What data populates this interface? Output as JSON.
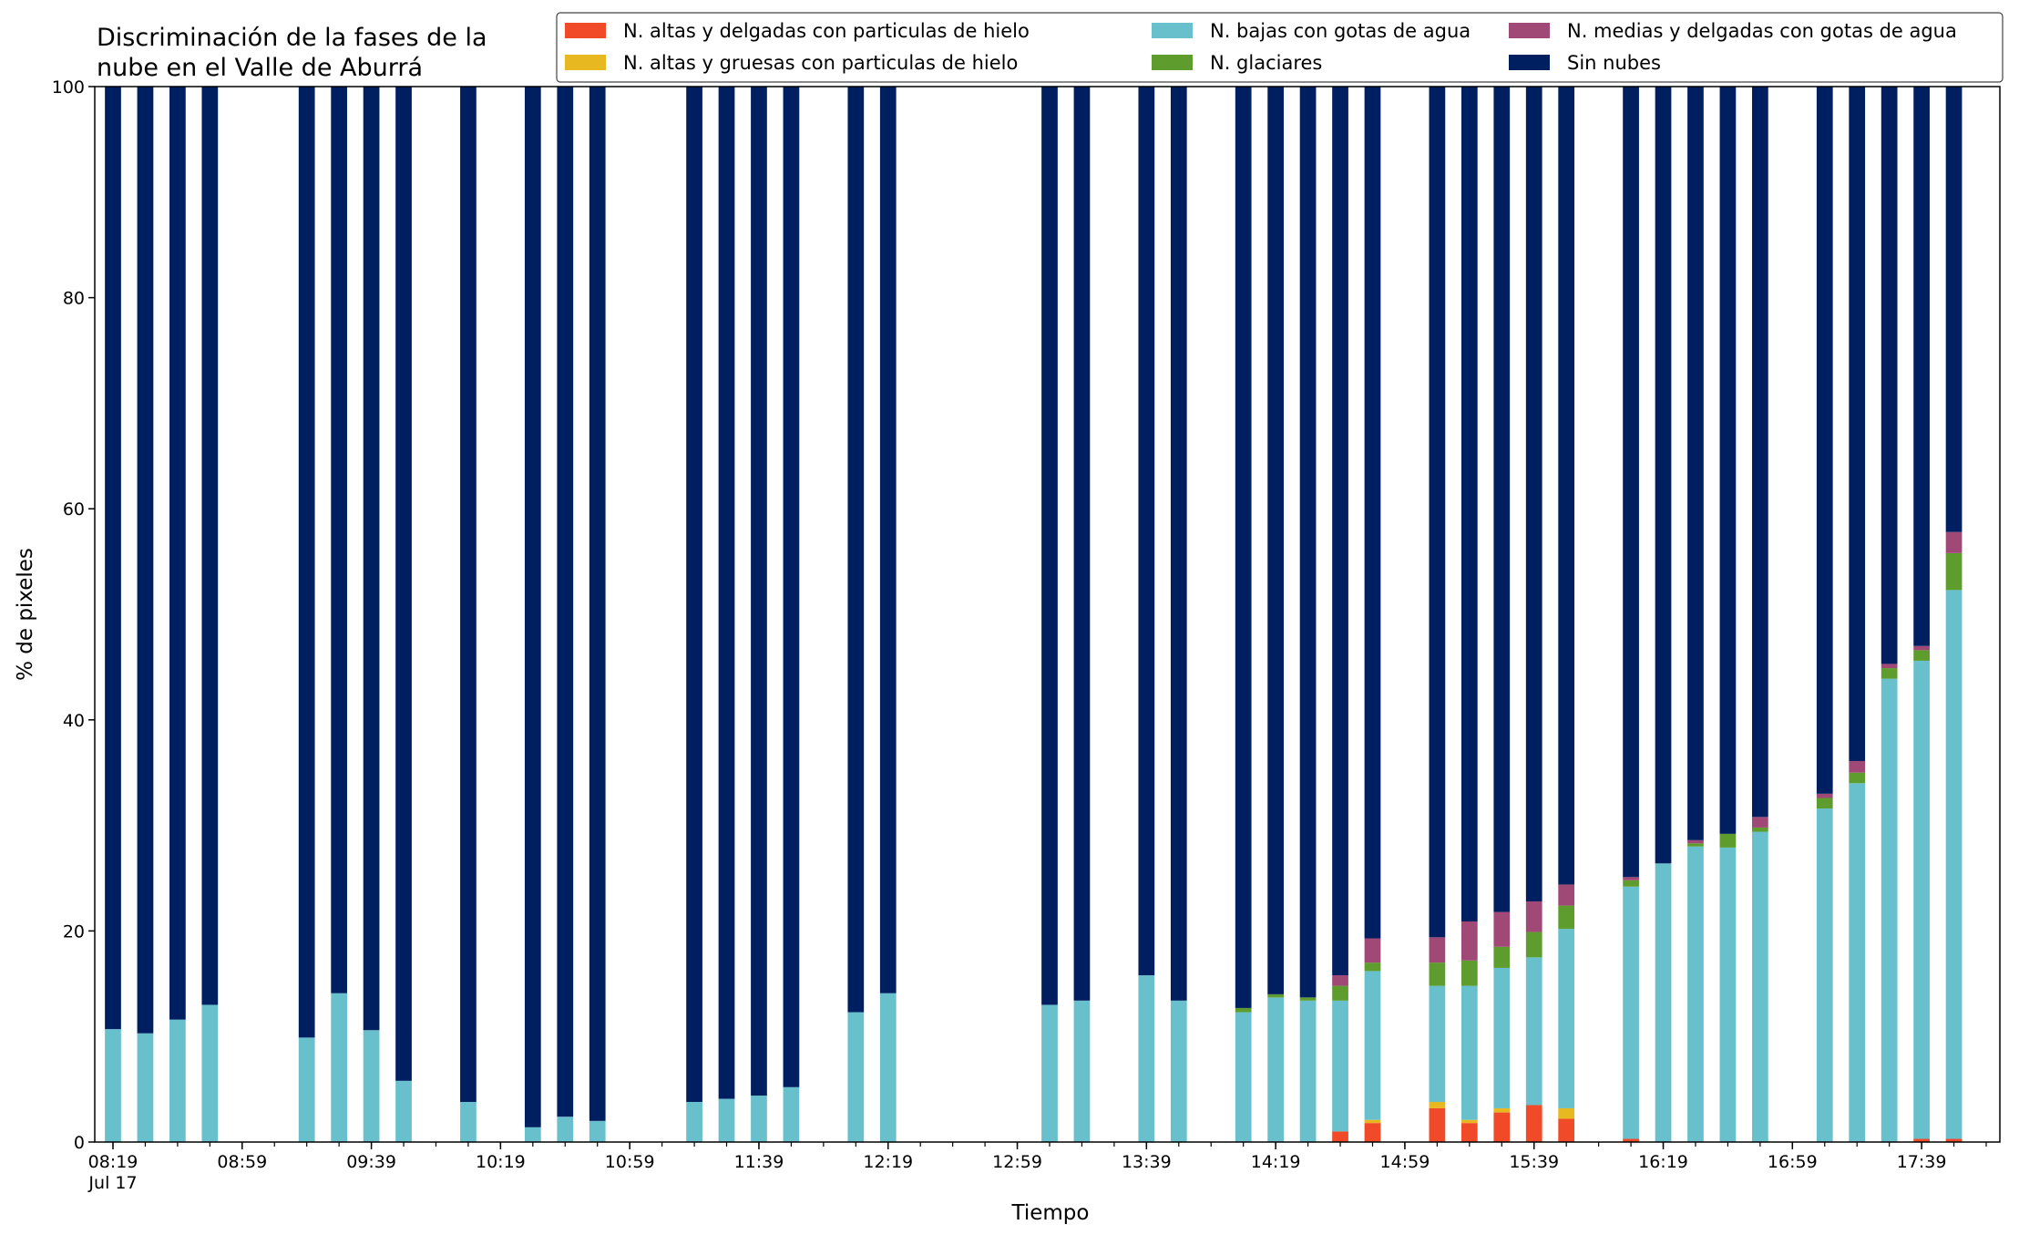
{
  "chart_data": {
    "type": "bar",
    "stacked": true,
    "title_lines": [
      "Discriminación de la fases de la",
      "nube en el Valle de Aburrá"
    ],
    "xlabel": "Tiempo",
    "ylabel": "% de pixeles",
    "ylim": [
      0,
      100
    ],
    "yticks": [
      0,
      20,
      40,
      60,
      80,
      100
    ],
    "xlim": [
      "08:19",
      "17:59"
    ],
    "x_interval_minutes": 10,
    "xtick_labels": [
      {
        "time": "08:19",
        "label": "08:19",
        "sublabel": "Jul 17"
      },
      {
        "time": "08:59",
        "label": "08:59"
      },
      {
        "time": "09:39",
        "label": "09:39"
      },
      {
        "time": "10:19",
        "label": "10:19"
      },
      {
        "time": "10:59",
        "label": "10:59"
      },
      {
        "time": "11:39",
        "label": "11:39"
      },
      {
        "time": "12:19",
        "label": "12:19"
      },
      {
        "time": "12:59",
        "label": "12:59"
      },
      {
        "time": "13:39",
        "label": "13:39"
      },
      {
        "time": "14:19",
        "label": "14:19"
      },
      {
        "time": "14:59",
        "label": "14:59"
      },
      {
        "time": "15:39",
        "label": "15:39"
      },
      {
        "time": "16:19",
        "label": "16:19"
      },
      {
        "time": "16:59",
        "label": "16:59"
      },
      {
        "time": "17:39",
        "label": "17:39"
      }
    ],
    "grid": false,
    "legend_position": "top-right",
    "x": [
      "08:19",
      "08:29",
      "08:39",
      "08:49",
      "09:19",
      "09:29",
      "09:39",
      "09:49",
      "10:09",
      "10:29",
      "10:39",
      "10:49",
      "11:19",
      "11:29",
      "11:39",
      "11:49",
      "12:09",
      "12:19",
      "13:09",
      "13:19",
      "13:39",
      "13:49",
      "14:09",
      "14:19",
      "14:29",
      "14:39",
      "14:49",
      "15:09",
      "15:19",
      "15:29",
      "15:39",
      "15:49",
      "16:09",
      "16:19",
      "16:29",
      "16:39",
      "16:49",
      "17:09",
      "17:19",
      "17:29",
      "17:39",
      "17:49"
    ],
    "series": [
      {
        "name": "N. altas y delgadas con particulas de hielo",
        "color": "#f04a28",
        "values": [
          0,
          0,
          0,
          0,
          0,
          0,
          0,
          0,
          0,
          0,
          0,
          0,
          0,
          0,
          0,
          0,
          0,
          0,
          0,
          0,
          0,
          0,
          0,
          0,
          0,
          1.0,
          1.8,
          3.2,
          1.8,
          2.8,
          3.5,
          2.2,
          0.3,
          0,
          0,
          0,
          0,
          0,
          0,
          0,
          0.3,
          0.3
        ]
      },
      {
        "name": "N. altas y gruesas con particulas de hielo",
        "color": "#e8b820",
        "values": [
          0,
          0,
          0,
          0,
          0,
          0,
          0,
          0,
          0,
          0,
          0,
          0,
          0,
          0,
          0,
          0,
          0,
          0,
          0,
          0,
          0,
          0,
          0,
          0,
          0,
          0,
          0.3,
          0.6,
          0.3,
          0.4,
          0,
          1.0,
          0,
          0,
          0,
          0,
          0,
          0,
          0,
          0,
          0,
          0
        ]
      },
      {
        "name": "N. bajas con gotas de agua",
        "color": "#67c0cb",
        "values": [
          10.7,
          10.3,
          11.6,
          13.0,
          9.9,
          14.1,
          10.6,
          5.8,
          3.8,
          1.4,
          2.4,
          2.0,
          3.8,
          4.1,
          4.4,
          5.2,
          12.3,
          14.1,
          13.0,
          13.4,
          15.8,
          13.4,
          12.3,
          13.7,
          13.4,
          12.4,
          14.1,
          11.0,
          12.7,
          13.3,
          14.0,
          17.0,
          23.9,
          26.4,
          28.0,
          27.9,
          29.4,
          31.6,
          34.0,
          43.9,
          45.3,
          52.0
        ]
      },
      {
        "name": "N. glaciares",
        "color": "#5f9c2e",
        "values": [
          0,
          0,
          0,
          0,
          0,
          0,
          0,
          0,
          0,
          0,
          0,
          0,
          0,
          0,
          0,
          0,
          0,
          0,
          0,
          0,
          0,
          0,
          0.4,
          0.3,
          0.3,
          1.4,
          0.8,
          2.2,
          2.4,
          2.0,
          2.4,
          2.2,
          0.6,
          0,
          0.3,
          1.3,
          0.4,
          1.0,
          1.0,
          1.0,
          1.0,
          3.5
        ]
      },
      {
        "name": "N. medias y delgadas con gotas de agua",
        "color": "#a04876",
        "values": [
          0,
          0,
          0,
          0,
          0,
          0,
          0,
          0,
          0,
          0,
          0,
          0,
          0,
          0,
          0,
          0,
          0,
          0,
          0,
          0,
          0,
          0,
          0,
          0,
          0,
          1.0,
          2.3,
          2.4,
          3.7,
          3.3,
          2.9,
          2.0,
          0.3,
          0,
          0.3,
          0,
          1.0,
          0.4,
          1.1,
          0.4,
          0.4,
          2.0
        ]
      },
      {
        "name": "Sin nubes",
        "color": "#001f60",
        "values": [
          89.3,
          89.7,
          88.4,
          87.0,
          90.1,
          85.9,
          89.4,
          94.2,
          96.2,
          98.6,
          97.6,
          98.0,
          96.2,
          95.9,
          95.6,
          94.8,
          87.7,
          85.9,
          87.0,
          86.6,
          84.2,
          86.6,
          87.3,
          86.0,
          86.3,
          84.2,
          80.7,
          80.6,
          79.1,
          78.2,
          77.2,
          75.6,
          74.9,
          73.6,
          71.4,
          70.8,
          69.2,
          67.0,
          63.9,
          54.7,
          53.0,
          42.2
        ]
      }
    ]
  }
}
